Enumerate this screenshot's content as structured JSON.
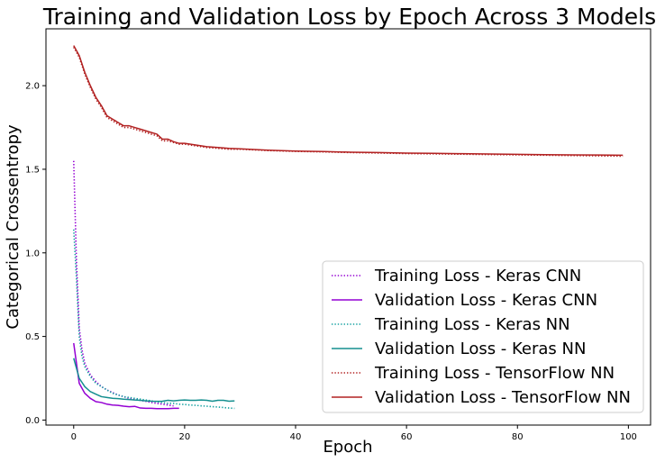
{
  "chart_data": {
    "type": "line",
    "title": "Training and Validation Loss by Epoch Across 3 Models",
    "xlabel": "Epoch",
    "ylabel": "Categorical Crossentropy",
    "xlim": [
      -5,
      104
    ],
    "ylim": [
      -0.03,
      2.34
    ],
    "xticks": [
      0,
      20,
      40,
      60,
      80,
      100
    ],
    "yticks": [
      0.0,
      0.5,
      1.0,
      1.5,
      2.0
    ],
    "xtick_labels": [
      "0",
      "20",
      "40",
      "60",
      "80",
      "100"
    ],
    "ytick_labels": [
      "0.0",
      "0.5",
      "1.0",
      "1.5",
      "2.0"
    ],
    "grid": false,
    "legend_position": "lower-right",
    "series": [
      {
        "name": "Training Loss - Keras CNN",
        "color": "#9400d3",
        "style": "dotted",
        "x": [
          0,
          0.5,
          1,
          1.5,
          2,
          3,
          4,
          5,
          6,
          7,
          8,
          9,
          10,
          11,
          12,
          13,
          14,
          15,
          16,
          17,
          18
        ],
        "y": [
          1.55,
          0.95,
          0.55,
          0.42,
          0.34,
          0.27,
          0.23,
          0.2,
          0.18,
          0.165,
          0.15,
          0.14,
          0.13,
          0.125,
          0.118,
          0.112,
          0.105,
          0.1,
          0.095,
          0.09,
          0.085
        ]
      },
      {
        "name": "Validation Loss - Keras CNN",
        "color": "#9400d3",
        "style": "solid",
        "x": [
          0,
          1,
          2,
          3,
          4,
          5,
          6,
          7,
          8,
          9,
          10,
          11,
          12,
          13,
          14,
          15,
          16,
          17,
          18,
          19
        ],
        "y": [
          0.46,
          0.22,
          0.16,
          0.13,
          0.11,
          0.105,
          0.095,
          0.09,
          0.088,
          0.083,
          0.08,
          0.082,
          0.072,
          0.07,
          0.07,
          0.068,
          0.068,
          0.068,
          0.07,
          0.07
        ]
      },
      {
        "name": "Training Loss - Keras NN",
        "color": "#17a2a2",
        "style": "dotted",
        "x": [
          0,
          0.5,
          1,
          1.5,
          2,
          3,
          4,
          5,
          6,
          7,
          8,
          9,
          10,
          11,
          12,
          13,
          14,
          15,
          16,
          17,
          18,
          19,
          20,
          21,
          22,
          23,
          24,
          25,
          26,
          27,
          28,
          29
        ],
        "y": [
          1.14,
          0.85,
          0.5,
          0.38,
          0.32,
          0.26,
          0.22,
          0.2,
          0.18,
          0.16,
          0.15,
          0.14,
          0.135,
          0.13,
          0.125,
          0.12,
          0.115,
          0.11,
          0.105,
          0.1,
          0.1,
          0.095,
          0.093,
          0.09,
          0.088,
          0.085,
          0.083,
          0.08,
          0.078,
          0.075,
          0.072,
          0.07
        ]
      },
      {
        "name": "Validation Loss - Keras NN",
        "color": "#148f8f",
        "style": "solid",
        "x": [
          0,
          1,
          2,
          3,
          4,
          5,
          6,
          7,
          8,
          9,
          10,
          11,
          12,
          13,
          14,
          15,
          16,
          17,
          18,
          19,
          20,
          21,
          22,
          23,
          24,
          25,
          26,
          27,
          28,
          29
        ],
        "y": [
          0.37,
          0.25,
          0.2,
          0.17,
          0.155,
          0.14,
          0.135,
          0.13,
          0.128,
          0.125,
          0.123,
          0.12,
          0.118,
          0.115,
          0.113,
          0.112,
          0.113,
          0.118,
          0.115,
          0.118,
          0.12,
          0.118,
          0.118,
          0.12,
          0.118,
          0.113,
          0.118,
          0.118,
          0.113,
          0.115
        ]
      },
      {
        "name": "Training Loss - TensorFlow NN",
        "color": "#b22222",
        "style": "dotted",
        "x": [
          0,
          1,
          2,
          3,
          4,
          5,
          6,
          7,
          8,
          9,
          10,
          11,
          12,
          13,
          14,
          15,
          16,
          17,
          18,
          19,
          20,
          22,
          24,
          26,
          28,
          30,
          35,
          40,
          45,
          50,
          55,
          60,
          65,
          70,
          75,
          80,
          85,
          90,
          95,
          99
        ],
        "y": [
          2.23,
          2.17,
          2.07,
          1.99,
          1.92,
          1.87,
          1.81,
          1.79,
          1.77,
          1.75,
          1.75,
          1.74,
          1.73,
          1.72,
          1.71,
          1.7,
          1.67,
          1.67,
          1.66,
          1.65,
          1.65,
          1.64,
          1.63,
          1.625,
          1.62,
          1.62,
          1.612,
          1.607,
          1.604,
          1.6,
          1.597,
          1.594,
          1.592,
          1.59,
          1.588,
          1.586,
          1.584,
          1.582,
          1.58,
          1.578
        ]
      },
      {
        "name": "Validation Loss - TensorFlow NN",
        "color": "#b22222",
        "style": "solid",
        "x": [
          0,
          1,
          2,
          3,
          4,
          5,
          6,
          7,
          8,
          9,
          10,
          11,
          12,
          13,
          14,
          15,
          16,
          17,
          18,
          19,
          20,
          22,
          24,
          26,
          28,
          30,
          35,
          40,
          45,
          50,
          55,
          60,
          65,
          70,
          75,
          80,
          85,
          90,
          95,
          99
        ],
        "y": [
          2.24,
          2.18,
          2.08,
          2.0,
          1.93,
          1.88,
          1.82,
          1.8,
          1.78,
          1.76,
          1.76,
          1.75,
          1.74,
          1.73,
          1.72,
          1.71,
          1.68,
          1.68,
          1.665,
          1.655,
          1.655,
          1.645,
          1.635,
          1.63,
          1.625,
          1.622,
          1.614,
          1.609,
          1.606,
          1.602,
          1.6,
          1.597,
          1.595,
          1.593,
          1.591,
          1.589,
          1.587,
          1.586,
          1.585,
          1.584
        ]
      }
    ]
  }
}
